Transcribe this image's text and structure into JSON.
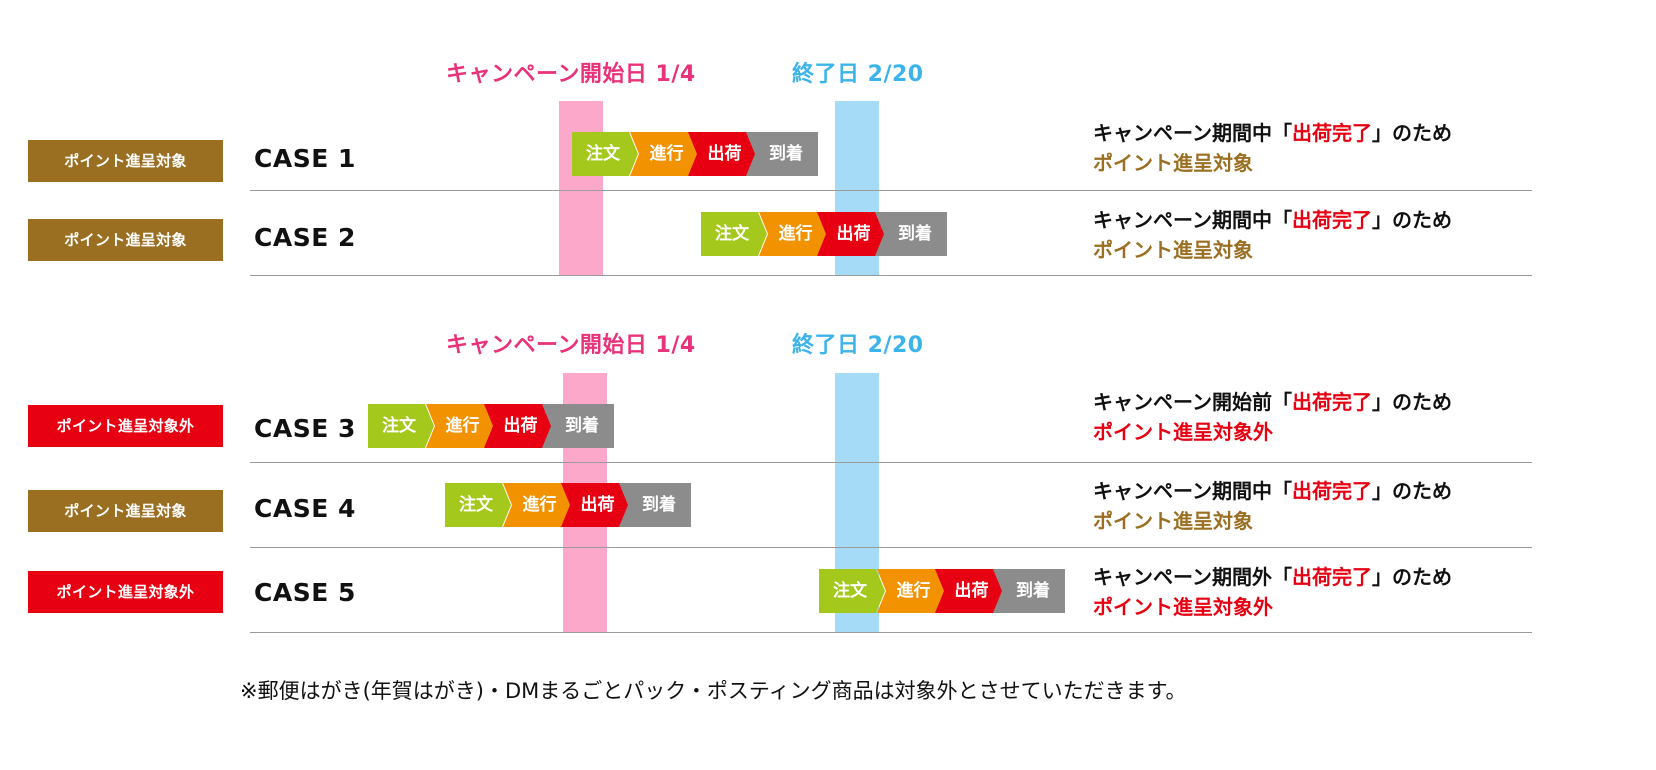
{
  "colors": {
    "pink": "#e8337a",
    "blue": "#3cb4ea",
    "pink_band": "#fba8cb",
    "blue_band": "#a5dbf7",
    "gold": "#9b6f22",
    "red": "#e60012",
    "step_order": "#a5c81c",
    "step_progress": "#f39200",
    "step_ship": "#e60012",
    "step_arrive": "#8c8c8c"
  },
  "steps": {
    "order": "注文",
    "progress": "進行",
    "ship": "出荷",
    "arrive": "到着"
  },
  "sections": [
    {
      "start_label": "キャンペーン開始日 1/4",
      "end_label": "終了日 2/20"
    },
    {
      "start_label": "キャンペーン開始日 1/4",
      "end_label": "終了日 2/20"
    }
  ],
  "cases": [
    {
      "badge": "ポイント進呈対象",
      "label": "CASE 1",
      "result_prefix": "キャンペーン期間中「",
      "result_highlight": "出荷完了",
      "result_suffix": "」のため",
      "result_status": "ポイント進呈対象"
    },
    {
      "badge": "ポイント進呈対象",
      "label": "CASE 2",
      "result_prefix": "キャンペーン期間中「",
      "result_highlight": "出荷完了",
      "result_suffix": "」のため",
      "result_status": "ポイント進呈対象"
    },
    {
      "badge": "ポイント進呈対象外",
      "label": "CASE 3",
      "result_prefix": "キャンペーン開始前「",
      "result_highlight": "出荷完了",
      "result_suffix": "」のため",
      "result_status": "ポイント進呈対象外"
    },
    {
      "badge": "ポイント進呈対象",
      "label": "CASE 4",
      "result_prefix": "キャンペーン期間中「",
      "result_highlight": "出荷完了",
      "result_suffix": "」のため",
      "result_status": "ポイント進呈対象"
    },
    {
      "badge": "ポイント進呈対象外",
      "label": "CASE 5",
      "result_prefix": "キャンペーン期間外「",
      "result_highlight": "出荷完了",
      "result_suffix": "」のため",
      "result_status": "ポイント進呈対象外"
    }
  ],
  "footnote": "※郵便はがき(年賀はがき)・DMまるごとパック・ポスティング商品は対象外とさせていただきます。"
}
